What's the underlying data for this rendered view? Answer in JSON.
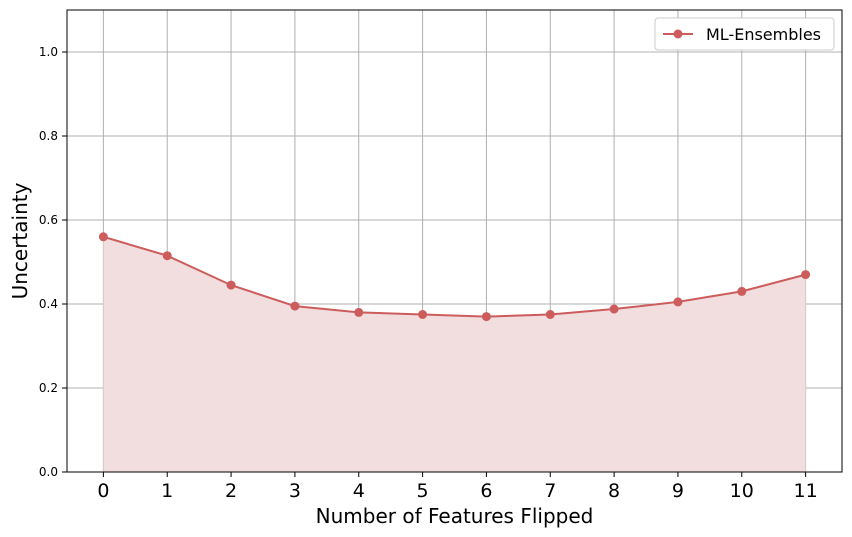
{
  "chart_data": {
    "type": "line",
    "xlabel": "Number of Features Flipped",
    "ylabel": "Uncertainty",
    "x": [
      0,
      1,
      2,
      3,
      4,
      5,
      6,
      7,
      8,
      9,
      10,
      11
    ],
    "xticks": [
      "0",
      "1",
      "2",
      "3",
      "4",
      "5",
      "6",
      "7",
      "8",
      "9",
      "10",
      "11"
    ],
    "yticks": [
      "0.0",
      "0.2",
      "0.4",
      "0.6",
      "0.8",
      "1.0"
    ],
    "ylim": [
      0,
      1.1
    ],
    "xlim": [
      -0.57,
      11.57
    ],
    "grid": true,
    "legend_position": "top-right",
    "series": [
      {
        "name": "ML-Ensembles",
        "color": "#cd5c5c",
        "fill_color": "#f2dede",
        "marker": "circle",
        "values": [
          0.56,
          0.515,
          0.445,
          0.395,
          0.38,
          0.375,
          0.37,
          0.375,
          0.388,
          0.405,
          0.43,
          0.47
        ]
      }
    ]
  }
}
